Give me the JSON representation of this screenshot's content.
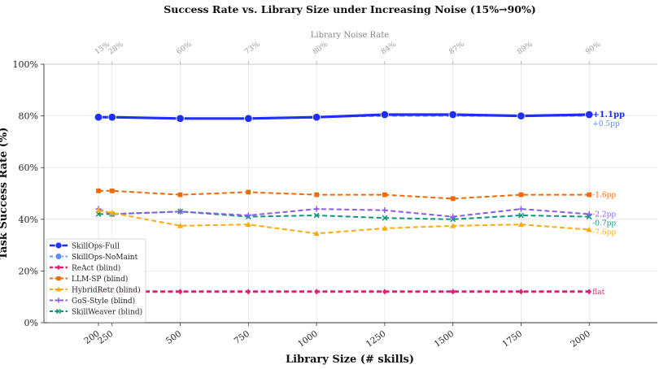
{
  "chart_data": {
    "type": "line",
    "title": "Success Rate vs. Library Size under Increasing Noise (15%→90%)",
    "xlabel": "Library Size (# skills)",
    "ylabel": "Task Success Rate (%)",
    "top_axis_label": "Library Noise Rate",
    "x": [
      200,
      250,
      500,
      750,
      1000,
      1250,
      1500,
      1750,
      2000
    ],
    "x_tick_labels": [
      "200",
      "250",
      "500",
      "750",
      "1000",
      "1250",
      "1500",
      "1750",
      "2000"
    ],
    "noise_tick_labels": [
      "15%",
      "28%",
      "60%",
      "73%",
      "80%",
      "84%",
      "87%",
      "89%",
      "90%"
    ],
    "xlim": [
      0,
      2250
    ],
    "ylim": [
      0,
      100
    ],
    "y_ticks": [
      0,
      20,
      40,
      60,
      80,
      100
    ],
    "y_tick_labels": [
      "0%",
      "20%",
      "40%",
      "60%",
      "80%",
      "100%"
    ],
    "grid": true,
    "legend_position": "lower-left",
    "series": [
      {
        "name": "SkillOps-Full",
        "color": "#1f2ff5",
        "marker": "circle",
        "dash": "solid",
        "width": 3.2,
        "values": [
          79.5,
          79.5,
          79,
          79,
          79.5,
          80.5,
          80.5,
          80,
          80.5
        ],
        "end_label": "+1.1pp",
        "end_bold": true
      },
      {
        "name": "SkillOps-NoMaint",
        "color": "#5b8ff5",
        "marker": "circle",
        "dash": "dashed",
        "width": 1.8,
        "values": [
          79.5,
          79.5,
          79,
          79,
          79.5,
          80,
          80,
          80,
          80
        ],
        "end_label": "+0.5pp"
      },
      {
        "name": "ReAct (blind)",
        "color": "#e0207a",
        "marker": "diamond",
        "dash": "dashed",
        "width": 3,
        "values": [
          12,
          12,
          12,
          12,
          12,
          12,
          12,
          12,
          12
        ],
        "end_label": "flat"
      },
      {
        "name": "LLM-SP (blind)",
        "color": "#f06a0a",
        "marker": "square",
        "dash": "dashed",
        "width": 2,
        "values": [
          51,
          51,
          49.5,
          50.5,
          49.5,
          49.5,
          48,
          49.5,
          49.5
        ],
        "end_label": "-1.6pp"
      },
      {
        "name": "HybridRetr (blind)",
        "color": "#ffaa10",
        "marker": "triangle",
        "dash": "dashed",
        "width": 2,
        "values": [
          43.5,
          42.5,
          37.5,
          38,
          34.5,
          36.5,
          37.5,
          38,
          36
        ],
        "end_label": "-7.6pp"
      },
      {
        "name": "GoS-Style (blind)",
        "color": "#8a5cf5",
        "marker": "plus",
        "dash": "dashed",
        "width": 2,
        "values": [
          44,
          42,
          43,
          41.5,
          44,
          43.5,
          41,
          44,
          42
        ],
        "end_label": "-2.2pp"
      },
      {
        "name": "SkillWeaver (blind)",
        "color": "#10977a",
        "marker": "x",
        "dash": "dashed",
        "width": 2,
        "values": [
          42,
          42,
          43,
          41,
          41.5,
          40.5,
          40,
          41.5,
          41
        ],
        "end_label": "-0.7pp"
      }
    ]
  }
}
